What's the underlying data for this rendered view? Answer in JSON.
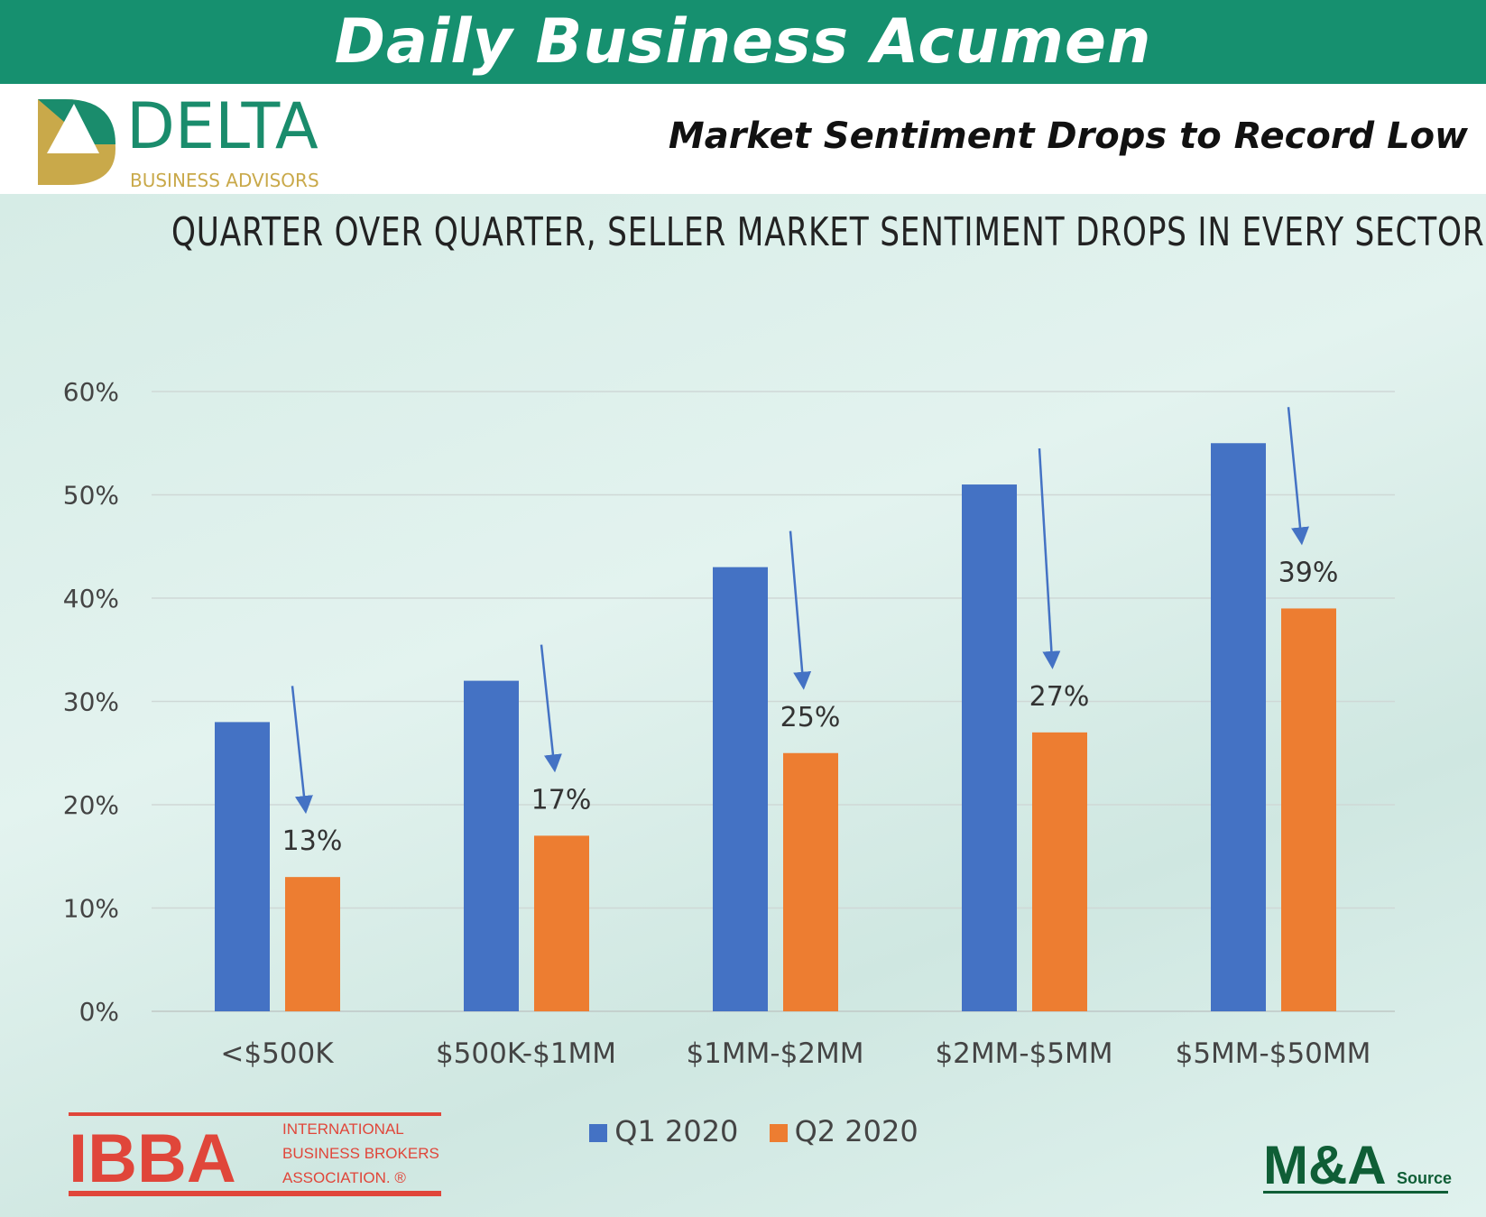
{
  "header": {
    "title": "Daily Business Acumen",
    "headline": "Market Sentiment Drops to Record Low"
  },
  "logos": {
    "delta": {
      "name": "DELTA",
      "sub": "BUSINESS ADVISORS"
    },
    "ibba": {
      "name": "IBBA",
      "lines": [
        "INTERNATIONAL",
        "BUSINESS BROKERS",
        "ASSOCIATION. ®"
      ]
    },
    "mna": {
      "name": "M&A",
      "sub": "Source"
    }
  },
  "colors": {
    "header": "#16906f",
    "q1": "#4472c4",
    "q2": "#ed7d31",
    "arrow": "#4472c4"
  },
  "chart_data": {
    "type": "bar",
    "title": "QUARTER OVER QUARTER, SELLER MARKET SENTIMENT DROPS IN EVERY SECTOR",
    "categories": [
      "<$500K",
      "$500K-$1MM",
      "$1MM-$2MM",
      "$2MM-$5MM",
      "$5MM-$50MM"
    ],
    "series": [
      {
        "name": "Q1 2020",
        "values": [
          28,
          32,
          43,
          51,
          55
        ]
      },
      {
        "name": "Q2 2020",
        "values": [
          13,
          17,
          25,
          27,
          39
        ],
        "data_labels": [
          "13%",
          "17%",
          "25%",
          "27%",
          "39%"
        ]
      }
    ],
    "yticks": [
      "0%",
      "10%",
      "20%",
      "30%",
      "40%",
      "50%",
      "60%"
    ],
    "ylim": [
      0,
      60
    ],
    "grid": true,
    "legend": "bottom",
    "annotations": "downward arrows from Q1 bar to Q2 label in each category"
  }
}
